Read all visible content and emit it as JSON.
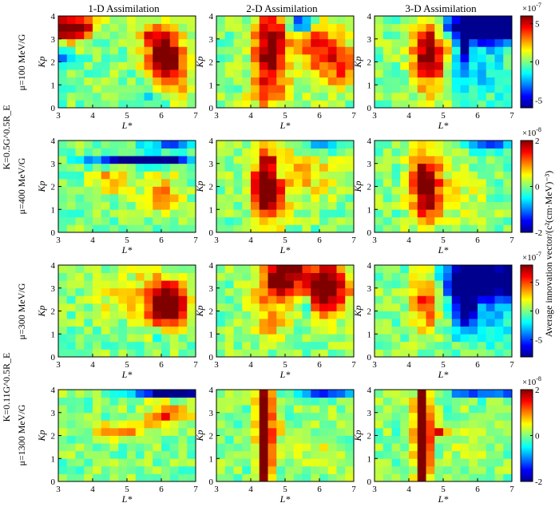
{
  "columns": [
    "1-D Assimilation",
    "2-D Assimilation",
    "3-D Assimilation"
  ],
  "row_labels": [
    "μ=100 MeV/G",
    "μ=400 MeV/G",
    "μ=300 MeV/G",
    "μ=1300 MeV/G"
  ],
  "k_labels": [
    "K=0.5G^0.5R_E",
    "K=0.11G^0.5R_E"
  ],
  "colorbar_label": "Average innovation vector/(c²(cm·MeV)⁻³)",
  "chart_data": {
    "type": "heatmap",
    "colormap": "jet",
    "xlabel": "L*",
    "ylabel": "Kp",
    "xlim": [
      3,
      7
    ],
    "ylim": [
      0,
      4
    ],
    "xticks": [
      3,
      4,
      5,
      6,
      7
    ],
    "yticks": [
      0,
      1,
      2,
      3,
      4
    ],
    "grid_columns": 16,
    "grid_rows": 12,
    "rows": [
      {
        "mu": "μ=100 MeV/G",
        "scale": "×10^-7",
        "clim": [
          -6,
          6
        ],
        "cbar_ticks": [
          -5,
          0,
          5
        ],
        "panels": [
          {
            "name": "1-D Assimilation",
            "blobs": [
              {
                "x": 3.4,
                "y": 3.5,
                "sx": 0.4,
                "sy": 0.35,
                "v": 9
              },
              {
                "x": 6.1,
                "y": 2.3,
                "sx": 0.35,
                "sy": 0.7,
                "v": 8
              },
              {
                "x": 5.6,
                "y": 3.2,
                "sx": 0.3,
                "sy": 0.3,
                "v": 3
              },
              {
                "x": 6.5,
                "y": 1.2,
                "sx": 0.25,
                "sy": 0.5,
                "v": 3
              },
              {
                "x": 3.2,
                "y": 2.2,
                "sx": 0.15,
                "sy": 0.15,
                "v": -5
              },
              {
                "x": 5.7,
                "y": 0.3,
                "sx": 0.3,
                "sy": 0.3,
                "v": -1.5
              }
            ]
          },
          {
            "name": "2-D Assimilation",
            "blobs": [
              {
                "x": 4.6,
                "y": 2.6,
                "sx": 0.35,
                "sy": 1.2,
                "v": 7
              },
              {
                "x": 5.9,
                "y": 2.6,
                "sx": 0.35,
                "sy": 1.0,
                "v": 4
              },
              {
                "x": 6.6,
                "y": 2.0,
                "sx": 0.3,
                "sy": 0.8,
                "v": 4
              },
              {
                "x": 5.5,
                "y": 3.7,
                "sx": 0.3,
                "sy": 0.2,
                "v": -6
              },
              {
                "x": 4.5,
                "y": 0.6,
                "sx": 0.4,
                "sy": 0.5,
                "v": 2.5
              }
            ]
          },
          {
            "name": "3-D Assimilation",
            "blobs": [
              {
                "x": 4.6,
                "y": 2.5,
                "sx": 0.35,
                "sy": 1.1,
                "v": 7
              },
              {
                "x": 6.3,
                "y": 3.6,
                "sx": 0.9,
                "sy": 0.5,
                "v": -10
              },
              {
                "x": 5.6,
                "y": 2.5,
                "sx": 0.15,
                "sy": 0.7,
                "v": -5
              },
              {
                "x": 6.2,
                "y": 1.5,
                "sx": 0.6,
                "sy": 0.8,
                "v": -2
              }
            ]
          }
        ]
      },
      {
        "mu": "μ=400 MeV/G",
        "scale": "×10^-8",
        "clim": [
          -2,
          2
        ],
        "cbar_ticks": [
          -2,
          0,
          2
        ],
        "panels": [
          {
            "name": "1-D Assimilation",
            "blobs": [
              {
                "x": 5.5,
                "y": 3.15,
                "sx": 1.0,
                "sy": 0.15,
                "v": -2.5
              },
              {
                "x": 6.2,
                "y": 3.8,
                "sx": 0.6,
                "sy": 0.15,
                "v": -1
              },
              {
                "x": 4.6,
                "y": 2.3,
                "sx": 0.35,
                "sy": 0.35,
                "v": 1.0
              },
              {
                "x": 6.0,
                "y": 1.7,
                "sx": 0.4,
                "sy": 0.6,
                "v": 0.9
              }
            ]
          },
          {
            "name": "2-D Assimilation",
            "blobs": [
              {
                "x": 4.5,
                "y": 2.0,
                "sx": 0.3,
                "sy": 1.1,
                "v": 2.5
              },
              {
                "x": 5.6,
                "y": 2.5,
                "sx": 0.8,
                "sy": 0.8,
                "v": 0.7
              },
              {
                "x": 6.2,
                "y": 3.75,
                "sx": 0.6,
                "sy": 0.15,
                "v": -1.0
              },
              {
                "x": 4.8,
                "y": 2.6,
                "sx": 0.15,
                "sy": 0.3,
                "v": -1.0
              }
            ]
          },
          {
            "name": "3-D Assimilation",
            "blobs": [
              {
                "x": 4.5,
                "y": 2.0,
                "sx": 0.3,
                "sy": 1.0,
                "v": 2.5
              },
              {
                "x": 6.3,
                "y": 3.75,
                "sx": 0.6,
                "sy": 0.15,
                "v": -1.2
              },
              {
                "x": 5.5,
                "y": 1.5,
                "sx": 0.5,
                "sy": 0.8,
                "v": 0.4
              }
            ]
          }
        ]
      },
      {
        "mu": "μ=300 MeV/G",
        "scale": "×10^-7",
        "clim": [
          -8,
          8
        ],
        "cbar_ticks": [
          -5,
          0,
          5
        ],
        "panels": [
          {
            "name": "1-D Assimilation",
            "blobs": [
              {
                "x": 6.2,
                "y": 2.3,
                "sx": 0.35,
                "sy": 0.6,
                "v": 12
              },
              {
                "x": 5.6,
                "y": 2.6,
                "sx": 0.5,
                "sy": 0.8,
                "v": 3
              },
              {
                "x": 4.4,
                "y": 2.8,
                "sx": 0.4,
                "sy": 0.6,
                "v": 1.8
              },
              {
                "x": 6.0,
                "y": 0.8,
                "sx": 0.15,
                "sy": 0.3,
                "v": -2.5
              }
            ]
          },
          {
            "name": "2-D Assimilation",
            "blobs": [
              {
                "x": 4.8,
                "y": 3.3,
                "sx": 0.4,
                "sy": 0.6,
                "v": 9
              },
              {
                "x": 6.2,
                "y": 3.0,
                "sx": 0.45,
                "sy": 0.8,
                "v": 10
              },
              {
                "x": 4.6,
                "y": 1.6,
                "sx": 0.4,
                "sy": 0.7,
                "v": 3
              },
              {
                "x": 5.6,
                "y": 2.3,
                "sx": 0.15,
                "sy": 0.3,
                "v": -4
              },
              {
                "x": 5.3,
                "y": 3.8,
                "sx": 0.3,
                "sy": 0.2,
                "v": 5
              }
            ]
          },
          {
            "name": "3-D Assimilation",
            "blobs": [
              {
                "x": 4.5,
                "y": 2.6,
                "sx": 0.3,
                "sy": 1.0,
                "v": 6
              },
              {
                "x": 6.3,
                "y": 3.4,
                "sx": 0.9,
                "sy": 0.6,
                "v": -12
              },
              {
                "x": 5.6,
                "y": 2.3,
                "sx": 0.25,
                "sy": 0.9,
                "v": -7
              },
              {
                "x": 6.3,
                "y": 1.7,
                "sx": 0.6,
                "sy": 0.8,
                "v": -2.5
              }
            ]
          }
        ]
      },
      {
        "mu": "μ=1300 MeV/G",
        "scale": "×10^-8",
        "clim": [
          -2,
          2
        ],
        "cbar_ticks": [
          -2,
          0,
          2
        ],
        "panels": [
          {
            "name": "1-D Assimilation",
            "blobs": [
              {
                "x": 6.3,
                "y": 3.9,
                "sx": 0.7,
                "sy": 0.15,
                "v": -3
              },
              {
                "x": 6.1,
                "y": 2.9,
                "sx": 0.5,
                "sy": 0.35,
                "v": 1.4
              },
              {
                "x": 4.8,
                "y": 2.2,
                "sx": 0.5,
                "sy": 0.25,
                "v": 1.1
              },
              {
                "x": 5.7,
                "y": 3.1,
                "sx": 0.3,
                "sy": 0.15,
                "v": -0.6
              }
            ]
          },
          {
            "name": "2-D Assimilation",
            "blobs": [
              {
                "x": 4.4,
                "y": 2.0,
                "sx": 0.15,
                "sy": 2.0,
                "v": 3
              },
              {
                "x": 6.2,
                "y": 3.85,
                "sx": 0.7,
                "sy": 0.15,
                "v": -1.3
              },
              {
                "x": 4.8,
                "y": 2.2,
                "sx": 0.2,
                "sy": 0.2,
                "v": 1.0
              },
              {
                "x": 5.7,
                "y": 1.4,
                "sx": 0.7,
                "sy": 0.6,
                "v": 0.4
              }
            ]
          },
          {
            "name": "3-D Assimilation",
            "blobs": [
              {
                "x": 4.4,
                "y": 2.0,
                "sx": 0.15,
                "sy": 2.0,
                "v": 3
              },
              {
                "x": 6.2,
                "y": 3.85,
                "sx": 0.7,
                "sy": 0.15,
                "v": -1.4
              },
              {
                "x": 4.9,
                "y": 2.2,
                "sx": 0.2,
                "sy": 0.2,
                "v": 1.2
              },
              {
                "x": 5.6,
                "y": 1.8,
                "sx": 0.6,
                "sy": 0.6,
                "v": 0.3
              }
            ]
          }
        ]
      }
    ]
  }
}
